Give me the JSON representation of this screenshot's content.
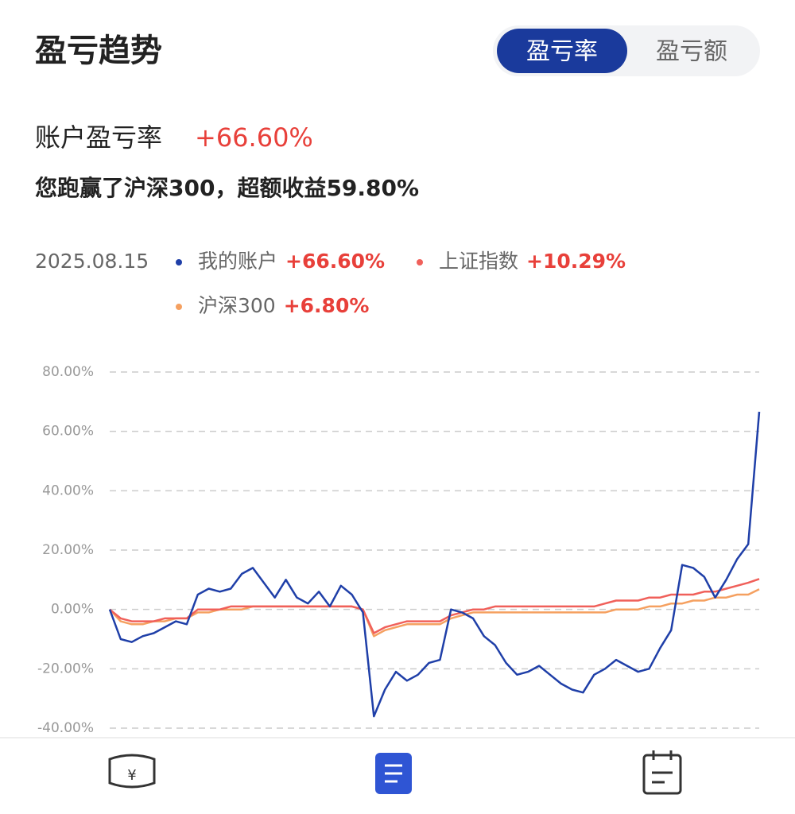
{
  "header": {
    "title": "盈亏趋势",
    "tabs": [
      "盈亏率",
      "盈亏额"
    ]
  },
  "summary": {
    "label": "账户盈亏率",
    "value": "+66.60%",
    "note": "您跑赢了沪深300，超额收益59.80%"
  },
  "chart_data": {
    "type": "line",
    "selected_date": "2025.08.15",
    "categories": [
      null,
      null,
      null,
      null,
      null,
      null,
      null,
      null,
      null,
      null,
      null,
      null,
      null,
      null,
      null,
      null,
      null,
      null,
      null,
      null,
      null,
      null,
      null,
      null,
      null,
      null,
      null,
      null,
      null,
      null,
      null,
      null,
      null,
      null,
      null,
      null,
      null,
      null,
      null,
      null,
      null,
      null,
      null,
      null,
      null,
      null,
      null,
      null,
      null,
      null,
      null,
      null,
      null,
      null,
      null,
      null,
      null,
      null,
      null,
      null
    ],
    "ylim": [
      -40,
      80
    ],
    "yticks": [
      {
        "value": 80,
        "label": "80.00%"
      },
      {
        "value": 60,
        "label": "60.00%"
      },
      {
        "value": 40,
        "label": "40.00%"
      },
      {
        "value": 20,
        "label": "20.00%"
      },
      {
        "value": 0,
        "label": "0.00%"
      },
      {
        "value": -20,
        "label": "-20.00%"
      },
      {
        "value": -40,
        "label": "-40.00%"
      }
    ],
    "grid": true,
    "series": [
      {
        "name": "我的账户",
        "change_label": "+66.60%",
        "color": "#1f3fa8",
        "values": [
          0,
          -10,
          -11,
          -9,
          -8,
          -6,
          -4,
          -5,
          5,
          7,
          6,
          7,
          12,
          14,
          9,
          4,
          10,
          4,
          2,
          6,
          1,
          8,
          5,
          -1,
          -36,
          -27,
          -21,
          -24,
          -22,
          -18,
          -17,
          0,
          -1,
          -3,
          -9,
          -12,
          -18,
          -22,
          -21,
          -19,
          -22,
          -25,
          -27,
          -28,
          -22,
          -20,
          -17,
          -19,
          -21,
          -20,
          -13,
          -7,
          15,
          14,
          11,
          4,
          10,
          17,
          22,
          66.6
        ]
      },
      {
        "name": "上证指数",
        "change_label": "+10.29%",
        "color": "#f0605a",
        "values": [
          0,
          -3,
          -4,
          -4,
          -4,
          -3,
          -3,
          -3,
          0,
          0,
          0,
          1,
          1,
          1,
          1,
          1,
          1,
          1,
          1,
          1,
          1,
          1,
          1,
          0,
          -8,
          -6,
          -5,
          -4,
          -4,
          -4,
          -4,
          -2,
          -1,
          0,
          0,
          1,
          1,
          1,
          1,
          1,
          1,
          1,
          1,
          1,
          1,
          2,
          3,
          3,
          3,
          4,
          4,
          5,
          5,
          5,
          6,
          6,
          7,
          8,
          9,
          10.29
        ]
      },
      {
        "name": "沪深300",
        "change_label": "+6.80%",
        "color": "#f5a060",
        "values": [
          0,
          -4,
          -5,
          -5,
          -4,
          -4,
          -3,
          -3,
          -1,
          -1,
          0,
          0,
          0,
          1,
          1,
          1,
          1,
          1,
          1,
          1,
          1,
          1,
          1,
          0,
          -9,
          -7,
          -6,
          -5,
          -5,
          -5,
          -5,
          -3,
          -2,
          -1,
          -1,
          -1,
          -1,
          -1,
          -1,
          -1,
          -1,
          -1,
          -1,
          -1,
          -1,
          -1,
          0,
          0,
          0,
          1,
          1,
          2,
          2,
          3,
          3,
          4,
          4,
          5,
          5,
          6.8
        ]
      }
    ]
  }
}
